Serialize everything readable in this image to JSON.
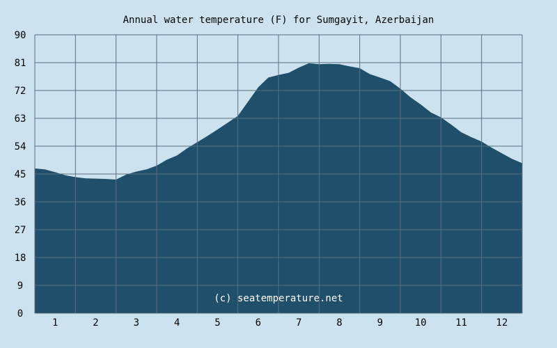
{
  "chart_data": {
    "type": "area",
    "title": "Annual water temperature (F) for Sumgayit, Azerbaijan",
    "xlabel": "",
    "ylabel": "",
    "watermark": "(c) seatemperature.net",
    "x": [
      0.5,
      0.75,
      1,
      1.25,
      1.5,
      1.75,
      2,
      2.25,
      2.5,
      2.75,
      3,
      3.25,
      3.5,
      3.75,
      4,
      4.25,
      4.5,
      4.75,
      5,
      5.25,
      5.5,
      5.75,
      6,
      6.25,
      6.5,
      6.75,
      7,
      7.25,
      7.5,
      7.75,
      8,
      8.25,
      8.5,
      8.75,
      9,
      9.25,
      9.5,
      9.75,
      10,
      10.25,
      10.5,
      10.75,
      11,
      11.25,
      11.5,
      11.75,
      12,
      12.25,
      12.5
    ],
    "values": [
      46.8,
      46.5,
      45.6,
      44.6,
      44.0,
      43.6,
      43.5,
      43.4,
      43.2,
      44.8,
      45.8,
      46.5,
      47.7,
      49.6,
      51.0,
      53.3,
      55.3,
      57.3,
      59.4,
      61.6,
      63.8,
      68.4,
      73.0,
      76.2,
      77.0,
      77.7,
      79.4,
      80.8,
      80.5,
      80.6,
      80.5,
      79.8,
      79.2,
      77.3,
      76.2,
      75.0,
      72.6,
      69.8,
      67.5,
      64.9,
      63.3,
      61.0,
      58.5,
      56.9,
      55.5,
      53.5,
      51.7,
      49.9,
      48.5
    ],
    "x_ticks": [
      "1",
      "2",
      "3",
      "4",
      "5",
      "6",
      "7",
      "8",
      "9",
      "10",
      "11",
      "12"
    ],
    "y_ticks": [
      "0",
      "9",
      "18",
      "27",
      "36",
      "45",
      "54",
      "63",
      "72",
      "81",
      "90"
    ],
    "xlim": [
      0.5,
      12.5
    ],
    "ylim": [
      0,
      90
    ],
    "grid": true,
    "colors": {
      "background": "#cce3ef",
      "area": "#1f4f6a",
      "grid": "#5a6f82",
      "watermark": "#ffffff"
    }
  }
}
